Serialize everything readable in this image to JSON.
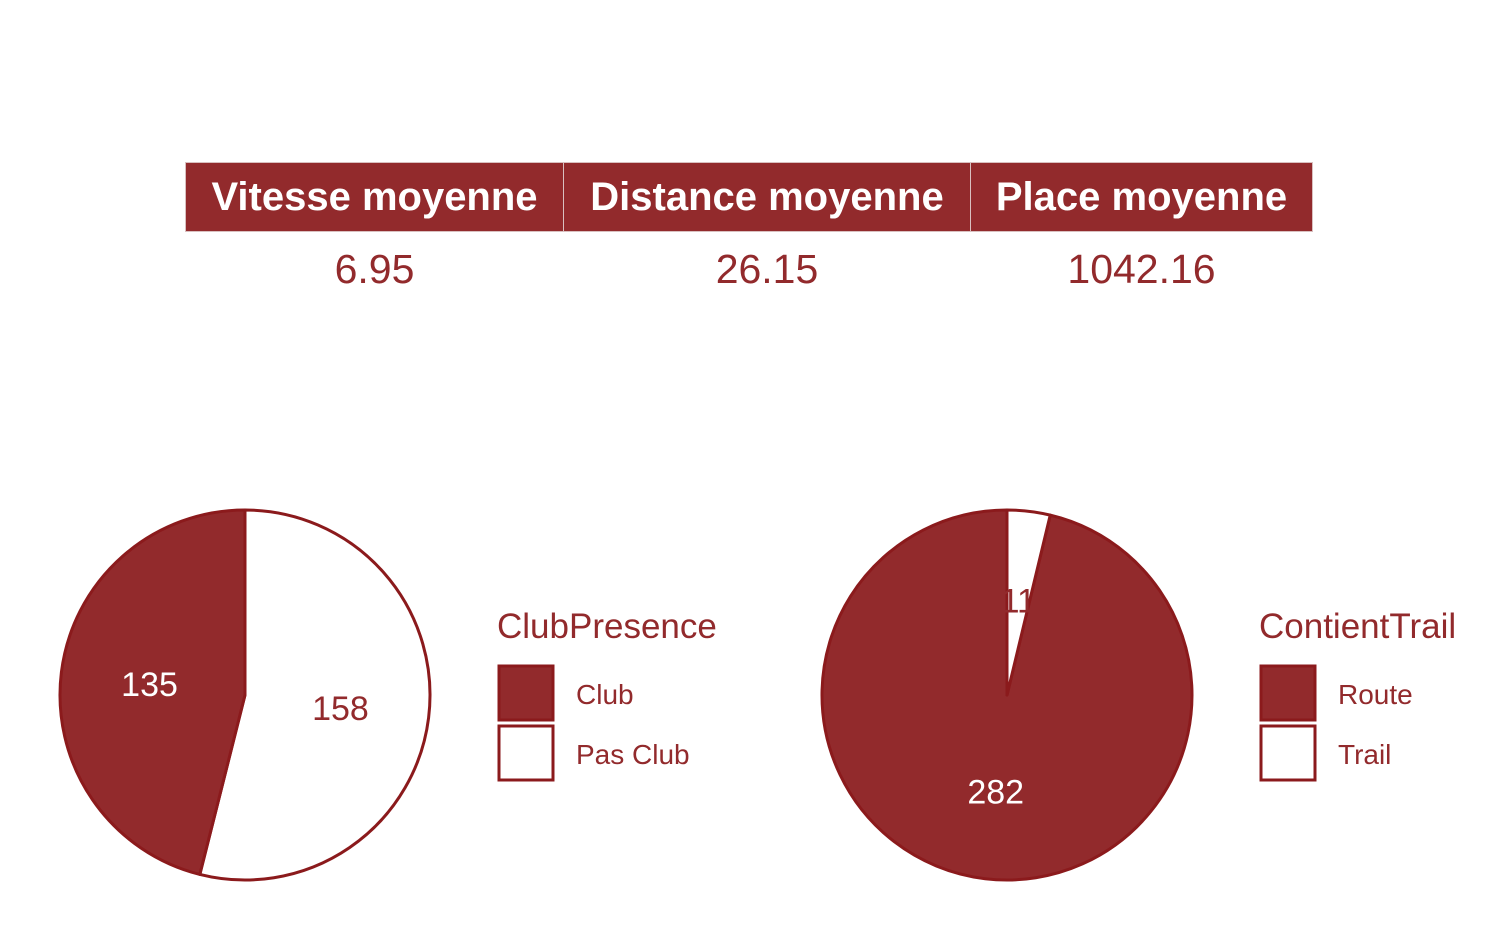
{
  "summary_table": {
    "headers": [
      "Vitesse moyenne",
      "Distance moyenne",
      "Place moyenne"
    ],
    "values": [
      "6.95",
      "26.15",
      "1042.16"
    ]
  },
  "colors": {
    "primary": "#922a2c",
    "outline": "#8b1a1c",
    "secondary": "#ffffff"
  },
  "chart_data": [
    {
      "type": "pie",
      "legend_title": "ClubPresence",
      "categories": [
        "Club",
        "Pas Club"
      ],
      "values": [
        135,
        158
      ],
      "labels": [
        "135",
        "158"
      ],
      "legend_position": "right"
    },
    {
      "type": "pie",
      "legend_title": "ContientTrail",
      "categories": [
        "Route",
        "Trail"
      ],
      "values": [
        282,
        11
      ],
      "labels": [
        "282",
        "11"
      ],
      "legend_position": "right"
    }
  ]
}
